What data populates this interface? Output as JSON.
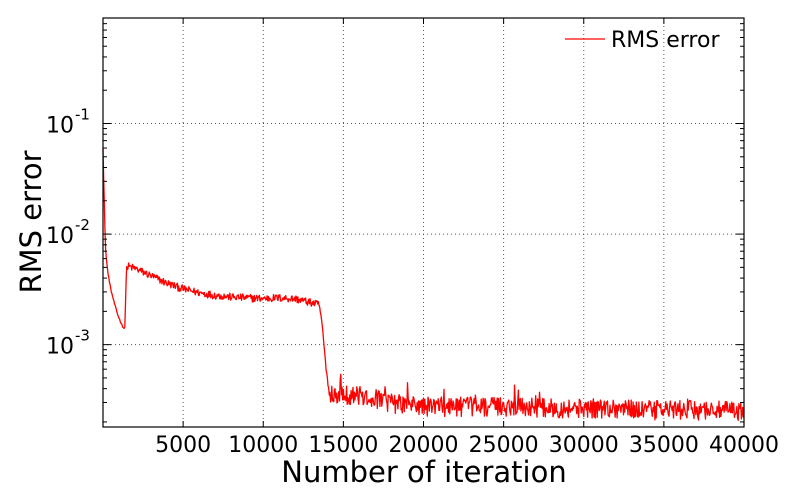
{
  "chart_data": {
    "type": "line",
    "title": "",
    "xlabel": "Number of iteration",
    "ylabel": "RMS error",
    "xlim": [
      0,
      40000
    ],
    "ylim": [
      0.00018,
      0.9
    ],
    "yscale": "log",
    "grid": true,
    "legend_position": "top-right",
    "x_ticks": [
      5000,
      10000,
      15000,
      20000,
      25000,
      30000,
      35000,
      40000
    ],
    "x_tick_labels": [
      "5000",
      "10000",
      "15000",
      "20000",
      "25000",
      "30000",
      "35000",
      "40000"
    ],
    "y_ticks": [
      {
        "value": 0.1,
        "base": "10",
        "exp": "-1"
      },
      {
        "value": 0.01,
        "base": "10",
        "exp": "-2"
      },
      {
        "value": 0.001,
        "base": "10",
        "exp": "-3"
      }
    ],
    "series": [
      {
        "name": "RMS error",
        "color": "#ff0000",
        "points": [
          [
            0,
            0.06
          ],
          [
            150,
            0.0075
          ],
          [
            300,
            0.0045
          ],
          [
            500,
            0.0031
          ],
          [
            700,
            0.0024
          ],
          [
            900,
            0.0019
          ],
          [
            1100,
            0.0016
          ],
          [
            1300,
            0.0014
          ],
          [
            1380,
            0.00145
          ],
          [
            1450,
            0.0048
          ],
          [
            1600,
            0.0051
          ],
          [
            2000,
            0.0049
          ],
          [
            3000,
            0.0042
          ],
          [
            4000,
            0.0036
          ],
          [
            5000,
            0.0032
          ],
          [
            6000,
            0.00295
          ],
          [
            7000,
            0.0028
          ],
          [
            8000,
            0.0027
          ],
          [
            9000,
            0.00265
          ],
          [
            10000,
            0.00262
          ],
          [
            11000,
            0.00265
          ],
          [
            12000,
            0.0026
          ],
          [
            13000,
            0.0024
          ],
          [
            13500,
            0.0023
          ],
          [
            13700,
            0.0014
          ],
          [
            13900,
            0.00065
          ],
          [
            14100,
            0.00038
          ],
          [
            15000,
            0.00036
          ],
          [
            16000,
            0.00035
          ],
          [
            17000,
            0.00033
          ],
          [
            18000,
            0.0003
          ],
          [
            19000,
            0.00029
          ],
          [
            20000,
            0.00028
          ],
          [
            22000,
            0.00028
          ],
          [
            24000,
            0.00028
          ],
          [
            26000,
            0.00028
          ],
          [
            28000,
            0.00027
          ],
          [
            30000,
            0.00027
          ],
          [
            32000,
            0.00027
          ],
          [
            34000,
            0.00026
          ],
          [
            36000,
            0.00026
          ],
          [
            38000,
            0.00026
          ],
          [
            40000,
            0.00025
          ]
        ]
      }
    ]
  }
}
